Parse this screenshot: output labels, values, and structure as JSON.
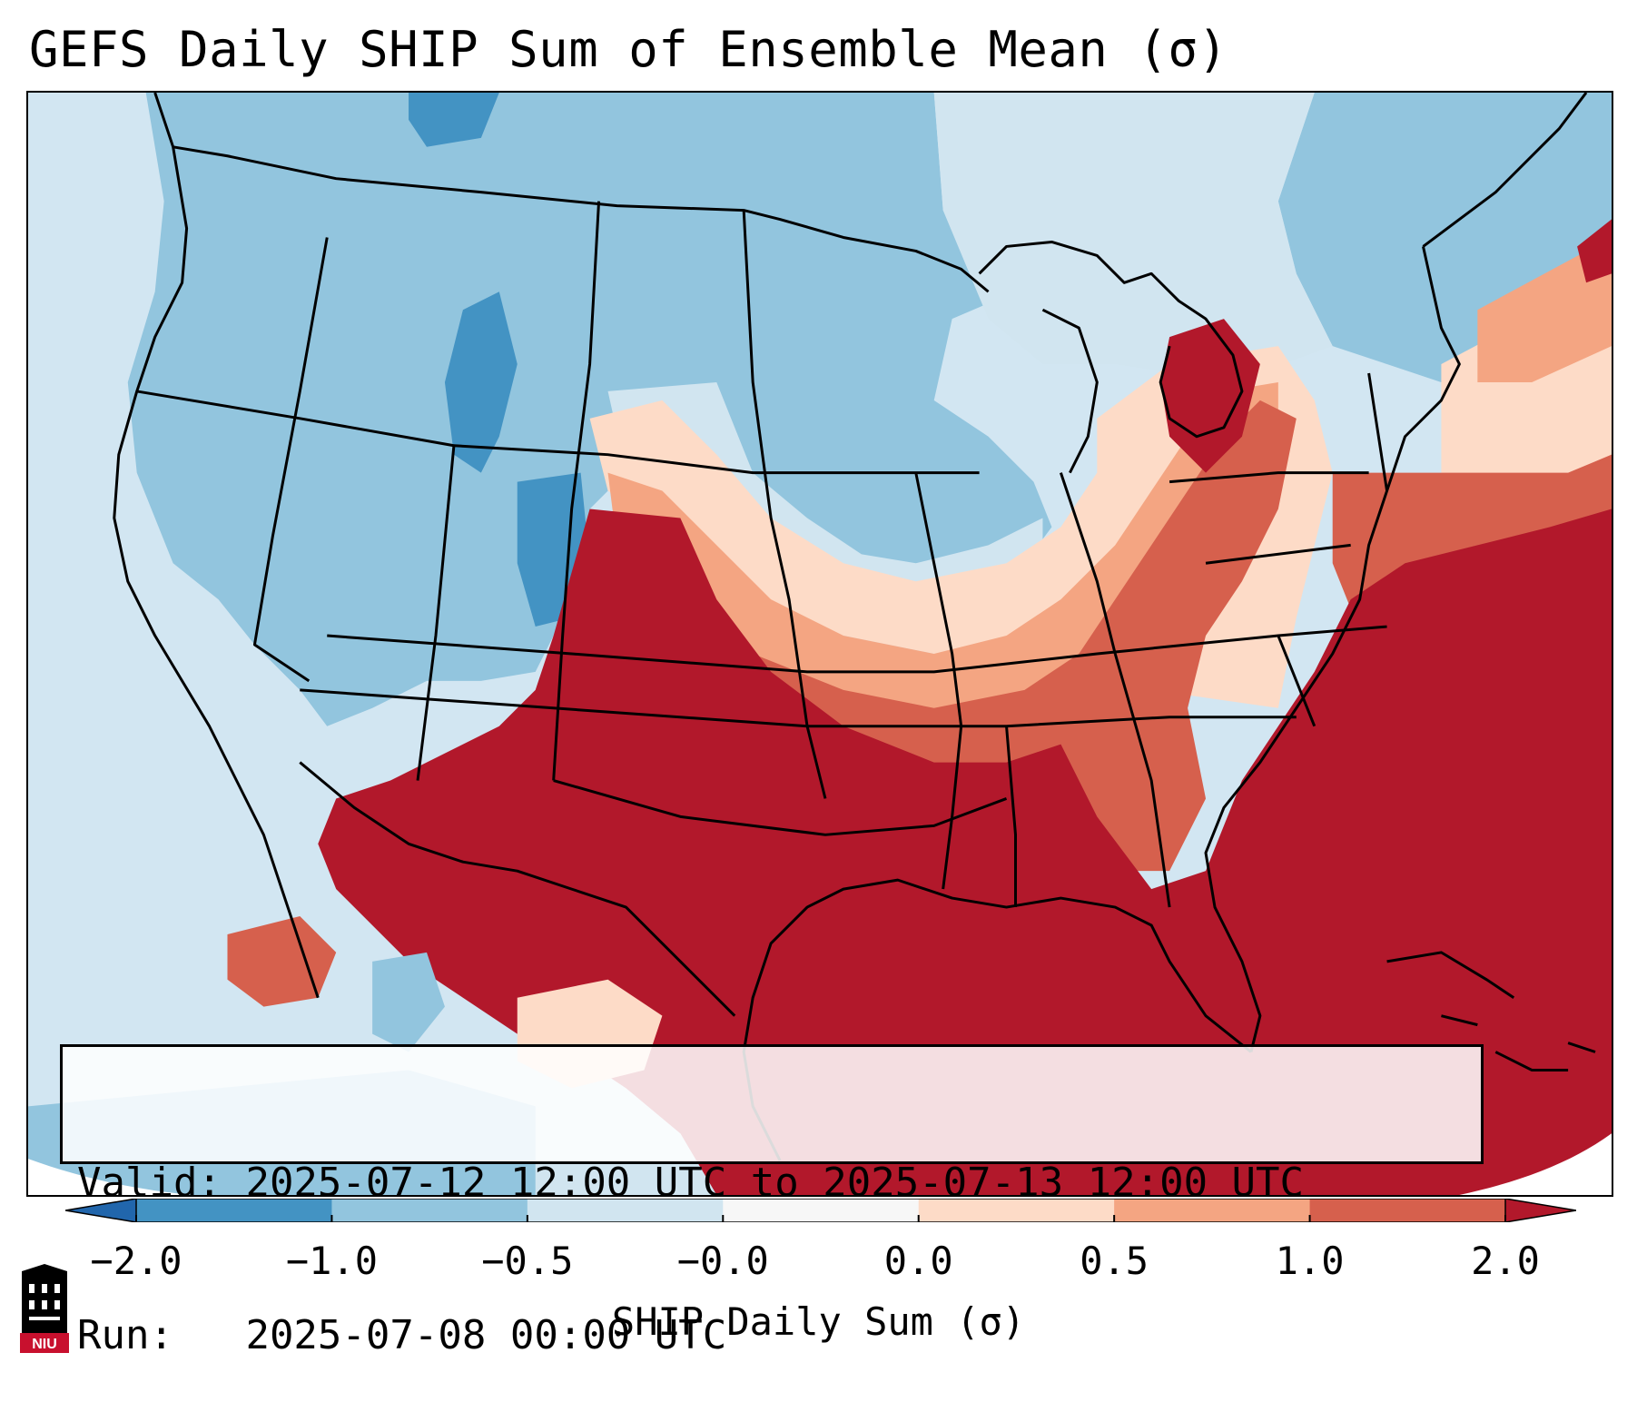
{
  "title": "GEFS Daily SHIP Sum of Ensemble Mean (σ)",
  "info": {
    "valid_label": "Valid:",
    "valid_value": "2025-07-12 12:00 UTC to 2025-07-13 12:00 UTC",
    "run_label": "Run:",
    "run_value": "2025-07-08 00:00 UTC"
  },
  "colorbar": {
    "label": "SHIP Daily Sum (σ)",
    "ticks": [
      "−2.0",
      "−1.0",
      "−0.5",
      "−0.0",
      "0.0",
      "0.5",
      "1.0",
      "2.0"
    ],
    "bins": [
      {
        "range": [
          -2.0,
          -1.0
        ],
        "color": "#4393c3"
      },
      {
        "range": [
          -1.0,
          -0.5
        ],
        "color": "#92c5de"
      },
      {
        "range": [
          -0.5,
          0.0
        ],
        "color": "#d1e5f0"
      },
      {
        "range": [
          0.0,
          0.0
        ],
        "color": "#f7f7f7"
      },
      {
        "range": [
          0.0,
          0.5
        ],
        "color": "#fddbc7"
      },
      {
        "range": [
          0.5,
          1.0
        ],
        "color": "#f4a582"
      },
      {
        "range": [
          1.0,
          2.0
        ],
        "color": "#d6604d"
      }
    ],
    "under_color": "#2166ac",
    "over_color": "#b2182b"
  },
  "logo": {
    "text": "NIU",
    "color": "#c8102e"
  }
}
